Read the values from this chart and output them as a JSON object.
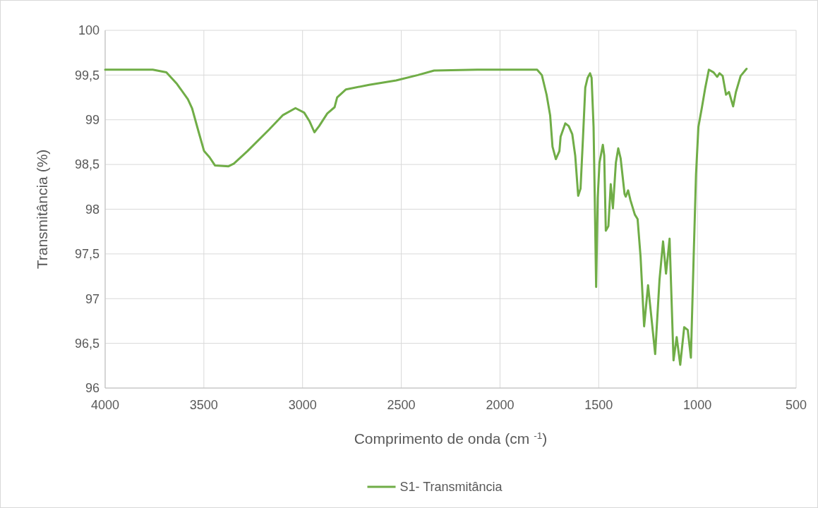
{
  "chart_data": {
    "type": "line",
    "xlabel": "Comprimento de onda (cm $^{-1}$)",
    "ylabel": "Transmitância (%)",
    "xlim": [
      4000,
      500
    ],
    "xticks": [
      4000,
      3500,
      3000,
      2500,
      2000,
      1500,
      1000,
      500
    ],
    "ylim": [
      96,
      100
    ],
    "yticks": [
      96,
      {
        "value": 96.5,
        "label": "96,5"
      },
      97,
      {
        "value": 97.5,
        "label": "97,5"
      },
      98,
      {
        "value": 98.5,
        "label": "98,5"
      },
      99,
      {
        "value": 99.5,
        "label": "99,5"
      },
      100
    ],
    "grid": true,
    "legend": "bottom",
    "marker": "none",
    "line_style": "solid",
    "series": [
      {
        "name": "S1- Transmitância",
        "color": "#70ad47",
        "x": [
          4000,
          3759,
          3690,
          3636,
          3581,
          3560,
          3526,
          3499,
          3471,
          3444,
          3375,
          3348,
          3279,
          3170,
          3101,
          3036,
          2992,
          2964,
          2940,
          2916,
          2875,
          2838,
          2825,
          2780,
          2663,
          2526,
          2416,
          2334,
          2115,
          1885,
          1812,
          1788,
          1764,
          1746,
          1734,
          1717,
          1699,
          1693,
          1669,
          1652,
          1634,
          1619,
          1604,
          1592,
          1580,
          1568,
          1556,
          1544,
          1536,
          1526,
          1520,
          1513,
          1505,
          1496,
          1479,
          1472,
          1464,
          1451,
          1439,
          1428,
          1413,
          1401,
          1389,
          1369,
          1363,
          1351,
          1339,
          1317,
          1303,
          1288,
          1270,
          1250,
          1234,
          1214,
          1192,
          1174,
          1159,
          1141,
          1121,
          1105,
          1087,
          1067,
          1049,
          1033,
          1019,
          1007,
          995,
          977,
          960,
          942,
          918,
          900,
          888,
          872,
          855,
          840,
          819,
          805,
          781,
          751
        ],
        "values": [
          99.56,
          99.56,
          99.53,
          99.4,
          99.23,
          99.13,
          98.86,
          98.65,
          98.58,
          98.49,
          98.48,
          98.51,
          98.65,
          98.89,
          99.05,
          99.13,
          99.08,
          98.98,
          98.86,
          98.93,
          99.07,
          99.14,
          99.25,
          99.34,
          99.39,
          99.44,
          99.5,
          99.55,
          99.56,
          99.56,
          99.56,
          99.5,
          99.28,
          99.05,
          98.7,
          98.56,
          98.65,
          98.81,
          98.96,
          98.93,
          98.84,
          98.6,
          98.15,
          98.23,
          98.78,
          99.36,
          99.47,
          99.52,
          99.47,
          98.92,
          98.13,
          97.13,
          98.13,
          98.52,
          98.72,
          98.6,
          97.76,
          97.81,
          98.28,
          98.01,
          98.52,
          98.68,
          98.57,
          98.17,
          98.14,
          98.21,
          98.1,
          97.94,
          97.89,
          97.47,
          96.69,
          97.15,
          96.81,
          96.38,
          97.21,
          97.64,
          97.28,
          97.67,
          96.31,
          96.57,
          96.26,
          96.68,
          96.65,
          96.34,
          97.47,
          98.39,
          98.92,
          99.14,
          99.36,
          99.56,
          99.53,
          99.48,
          99.52,
          99.49,
          99.28,
          99.31,
          99.15,
          99.31,
          99.49,
          99.57
        ]
      }
    ]
  }
}
